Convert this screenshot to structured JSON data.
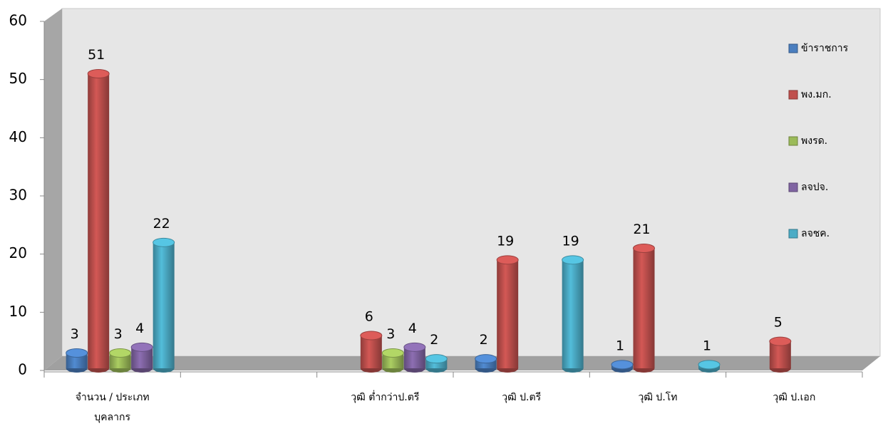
{
  "chart_data": {
    "type": "bar3d",
    "categories": [
      "จำนวน / ประเภท บุคลากร",
      null,
      "วุฒิ ต่ำกว่าป.ตรี",
      "วุฒิ ป.ตรี",
      "วุฒิ ป.โท",
      "วุฒิ ป.เอก"
    ],
    "series": [
      {
        "name": "ข้าราชการ",
        "color": "#4a7ebf",
        "values": [
          3,
          null,
          null,
          2,
          1,
          null
        ]
      },
      {
        "name": "พง.มก.",
        "color": "#c0504d",
        "values": [
          51,
          null,
          6,
          19,
          21,
          5
        ]
      },
      {
        "name": "พงรด.",
        "color": "#9bbb59",
        "values": [
          3,
          null,
          3,
          null,
          null,
          null
        ]
      },
      {
        "name": "ลจปจ.",
        "color": "#8064a2",
        "values": [
          4,
          null,
          4,
          null,
          null,
          null
        ]
      },
      {
        "name": "ลจชค.",
        "color": "#4bacc6",
        "values": [
          22,
          null,
          2,
          19,
          1,
          null
        ]
      }
    ],
    "ylim": [
      0,
      60
    ],
    "yticks": [
      0,
      10,
      20,
      30,
      40,
      50,
      60
    ],
    "legend": "right"
  }
}
